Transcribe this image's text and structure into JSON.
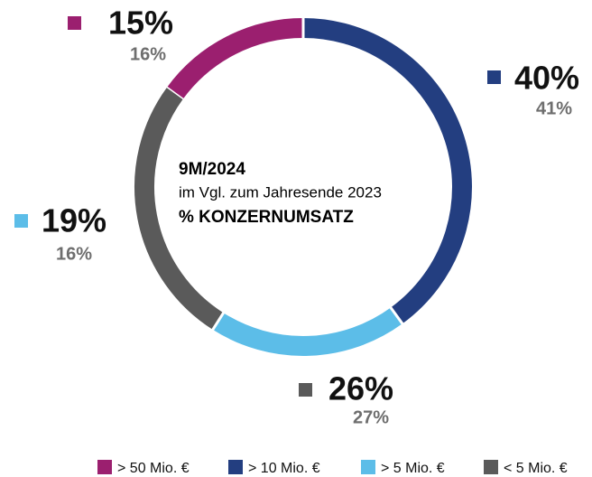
{
  "chart_data": {
    "type": "donut",
    "title": "9M/2024",
    "subtitle": "im Vgl. zum Jahresende 2023",
    "center_label": "% KONZERNUMSATZ",
    "categories": [
      "> 50 Mio. €",
      "> 10 Mio. €",
      "> 5 Mio. €",
      "< 5 Mio. €"
    ],
    "values": [
      15,
      40,
      19,
      26
    ],
    "value_labels": [
      "15%",
      "40%",
      "19%",
      "26%"
    ],
    "previous_values": [
      16,
      41,
      16,
      27
    ],
    "previous_value_labels": [
      "16%",
      "41%",
      "16%",
      "27%"
    ],
    "colors": [
      "#9b1f6f",
      "#233e80",
      "#5cbde8",
      "#5a5a5a"
    ],
    "legend": "bottom"
  }
}
